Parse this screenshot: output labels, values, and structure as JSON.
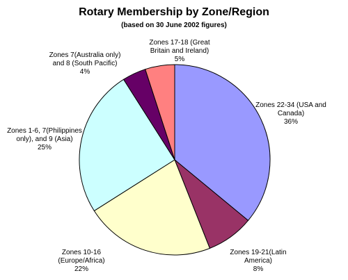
{
  "chart_data": {
    "type": "pie",
    "title": "Rotary Membership by Zone/Region",
    "subtitle": "(based on 30 June 2002 figures)",
    "categories": [
      "Zones 22-34 (USA and Canada)",
      "Zones 19-21(Latin America)",
      "Zones 10-16 (Europe/Africa)",
      "Zones 1-6, 7(Philippines only), and 9 (Asia)",
      "Zones 7(Australia only) and 8 (South Pacific)",
      "Zones 17-18 (Great Britain and Ireland)"
    ],
    "values": [
      36,
      8,
      22,
      25,
      4,
      5
    ],
    "value_labels": [
      "36%",
      "8%",
      "22%",
      "25%",
      "4%",
      "5%"
    ],
    "colors": [
      "#9999ff",
      "#993366",
      "#ffffcc",
      "#ccffff",
      "#660066",
      "#ff8080"
    ]
  }
}
